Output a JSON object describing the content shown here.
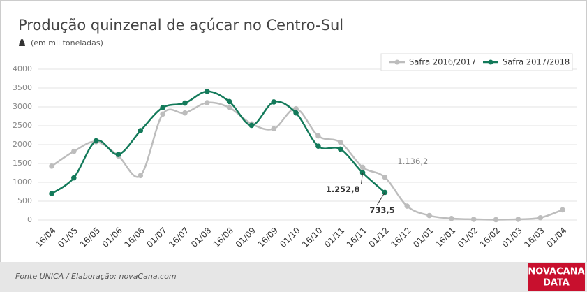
{
  "chart_data": {
    "type": "line",
    "title": "Produção quinzenal de açúcar no Centro-Sul",
    "subtitle": "(em mil toneladas)",
    "source": "Fonte UNICA / Elaboração: novaCana.com",
    "brand": [
      "NOVACANA",
      "DATA"
    ],
    "categories": [
      "16/04",
      "01/05",
      "16/05",
      "01/06",
      "16/06",
      "01/07",
      "16/07",
      "01/08",
      "16/08",
      "01/09",
      "16/09",
      "01/10",
      "16/10",
      "01/11",
      "16/11",
      "01/12",
      "16/12",
      "01/01",
      "16/01",
      "01/02",
      "16/02",
      "01/03",
      "16/03",
      "01/04"
    ],
    "series": [
      {
        "name": "Safra 2016/2017",
        "color": "#bdbdbd",
        "values": [
          1430,
          1820,
          2080,
          1700,
          1180,
          2810,
          2840,
          3110,
          2980,
          2550,
          2420,
          2950,
          2230,
          2060,
          1400,
          1136.2,
          370,
          120,
          40,
          20,
          10,
          20,
          60,
          270
        ],
        "value_labels": [
          null,
          null,
          null,
          null,
          null,
          null,
          null,
          null,
          null,
          null,
          null,
          null,
          null,
          null,
          null,
          "1.136,2",
          null,
          null,
          null,
          null,
          null,
          null,
          null,
          null
        ]
      },
      {
        "name": "Safra 2017/2018",
        "color": "#137a5a",
        "values": [
          700,
          1120,
          2100,
          1740,
          2370,
          2980,
          3100,
          3410,
          3140,
          2510,
          3130,
          2840,
          1960,
          1880,
          1252.8,
          733.5,
          null,
          null,
          null,
          null,
          null,
          null,
          null,
          null
        ],
        "value_labels": [
          null,
          null,
          null,
          null,
          null,
          null,
          null,
          null,
          null,
          null,
          null,
          null,
          null,
          null,
          "1.252,8",
          "733,5",
          null,
          null,
          null,
          null,
          null,
          null,
          null,
          null
        ]
      }
    ],
    "ylim": [
      0,
      4000
    ],
    "yticks": [
      0,
      500,
      1000,
      1500,
      2000,
      2500,
      3000,
      3500,
      4000
    ],
    "grid": true,
    "legend": "top-right"
  }
}
